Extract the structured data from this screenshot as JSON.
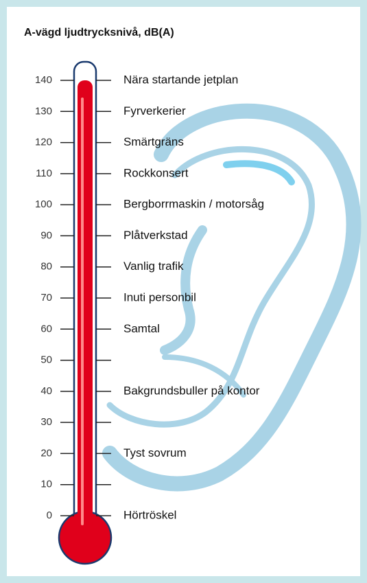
{
  "chart_data": {
    "type": "thermometer",
    "title": "A-vägd ljudtrycksnivå, dB(A)",
    "ylim": [
      0,
      140
    ],
    "yticks": [
      0,
      10,
      20,
      30,
      40,
      50,
      60,
      70,
      80,
      90,
      100,
      110,
      120,
      130,
      140
    ],
    "value": 140,
    "color": "#e0001b",
    "annotations": [
      {
        "value": 140,
        "label": "Nära startande jetplan"
      },
      {
        "value": 130,
        "label": "Fyrverkerier"
      },
      {
        "value": 120,
        "label": "Smärtgräns"
      },
      {
        "value": 110,
        "label": "Rockkonsert"
      },
      {
        "value": 100,
        "label": "Bergborrmaskin / motorsåg"
      },
      {
        "value": 90,
        "label": "Plåtverkstad"
      },
      {
        "value": 80,
        "label": "Vanlig trafik"
      },
      {
        "value": 70,
        "label": "Inuti personbil"
      },
      {
        "value": 60,
        "label": "Samtal"
      },
      {
        "value": 40,
        "label": "Bakgrundsbuller på kontor"
      },
      {
        "value": 20,
        "label": "Tyst sovrum"
      },
      {
        "value": 0,
        "label": "Hörtröskel"
      }
    ]
  }
}
